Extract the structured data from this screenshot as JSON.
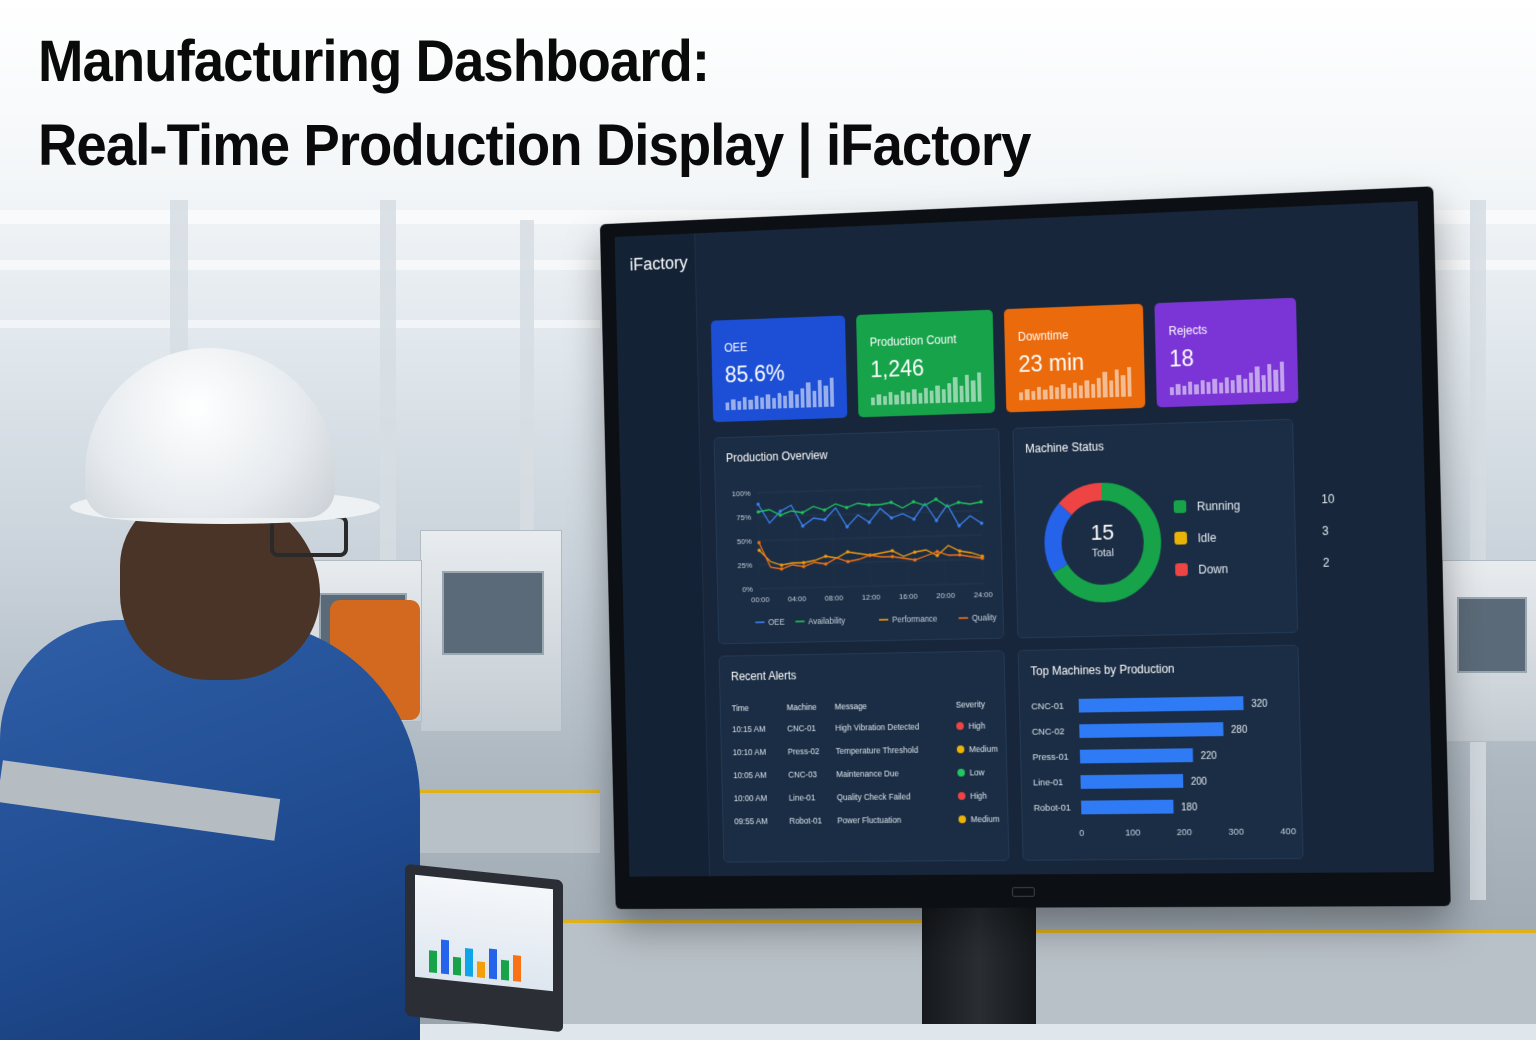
{
  "headline": {
    "line1": "Manufacturing Dashboard:",
    "line2": "Real-Time Production Display | iFactory"
  },
  "dashboard": {
    "brand": "iFactory",
    "kpis": [
      {
        "label": "OEE",
        "value": "85.6%",
        "color": "#1c4fd6"
      },
      {
        "label": "Production Count",
        "value": "1,246",
        "color": "#16a34a"
      },
      {
        "label": "Downtime",
        "value": "23 min",
        "color": "#ea6a0c"
      },
      {
        "label": "Rejects",
        "value": "18",
        "color": "#7b35d6"
      }
    ],
    "production_overview": {
      "title": "Production Overview",
      "chart_data": {
        "type": "line",
        "y_ticks": [
          "100%",
          "75%",
          "50%",
          "25%",
          "0%"
        ],
        "x_ticks": [
          "00:00",
          "04:00",
          "08:00",
          "12:00",
          "16:00",
          "20:00",
          "24:00"
        ],
        "ylim": [
          0,
          100
        ],
        "series": [
          {
            "name": "OEE",
            "color": "#3b82f6",
            "values": [
              88,
              68,
              80,
              86,
              64,
              72,
              70,
              82,
              62,
              74,
              66,
              80,
              70,
              74,
              68,
              84,
              66,
              82,
              60,
              70,
              62
            ]
          },
          {
            "name": "Availability",
            "color": "#22c55e",
            "values": [
              80,
              82,
              76,
              80,
              78,
              84,
              80,
              86,
              82,
              86,
              84,
              84,
              86,
              80,
              86,
              82,
              88,
              80,
              84,
              82,
              84
            ]
          },
          {
            "name": "Performance",
            "color": "#f59e0b",
            "values": [
              40,
              28,
              24,
              26,
              26,
              28,
              32,
              30,
              36,
              34,
              32,
              34,
              36,
              30,
              34,
              36,
              30,
              40,
              34,
              32,
              28
            ]
          },
          {
            "name": "Quality",
            "color": "#f97316",
            "values": [
              48,
              22,
              20,
              24,
              22,
              26,
              24,
              30,
              26,
              28,
              32,
              30,
              30,
              28,
              26,
              30,
              34,
              30,
              30,
              28,
              26
            ]
          }
        ]
      }
    },
    "machine_status": {
      "title": "Machine Status",
      "total": "15",
      "total_label": "Total",
      "chart_data": {
        "type": "pie",
        "categories": [
          "Running",
          "Idle",
          "Down"
        ],
        "values": [
          10,
          3,
          2
        ],
        "colors": [
          "#16a34a",
          "#2563eb",
          "#ef4444"
        ]
      },
      "legend_colors": [
        "#16a34a",
        "#eab308",
        "#ef4444"
      ]
    },
    "recent_alerts": {
      "title": "Recent Alerts",
      "columns": [
        "Time",
        "Machine",
        "Message",
        "Severity"
      ],
      "rows": [
        {
          "time": "10:15 AM",
          "machine": "CNC-01",
          "message": "High Vibration Detected",
          "severity": "High",
          "color": "#ef4444"
        },
        {
          "time": "10:10 AM",
          "machine": "Press-02",
          "message": "Temperature Threshold",
          "severity": "Medium",
          "color": "#eab308"
        },
        {
          "time": "10:05 AM",
          "machine": "CNC-03",
          "message": "Maintenance Due",
          "severity": "Low",
          "color": "#22c55e"
        },
        {
          "time": "10:00 AM",
          "machine": "Line-01",
          "message": "Quality Check Failed",
          "severity": "High",
          "color": "#ef4444"
        },
        {
          "time": "09:55 AM",
          "machine": "Robot-01",
          "message": "Power Fluctuation",
          "severity": "Medium",
          "color": "#eab308"
        }
      ]
    },
    "top_machines": {
      "title": "Top Machines by Production",
      "chart_data": {
        "type": "bar",
        "orientation": "horizontal",
        "categories": [
          "CNC-01",
          "CNC-02",
          "Press-01",
          "Line-01",
          "Robot-01"
        ],
        "values": [
          320,
          280,
          220,
          200,
          180
        ],
        "x_ticks": [
          "0",
          "100",
          "200",
          "300",
          "400"
        ],
        "xlim": [
          0,
          400
        ],
        "color": "#2f7bf5"
      }
    }
  }
}
